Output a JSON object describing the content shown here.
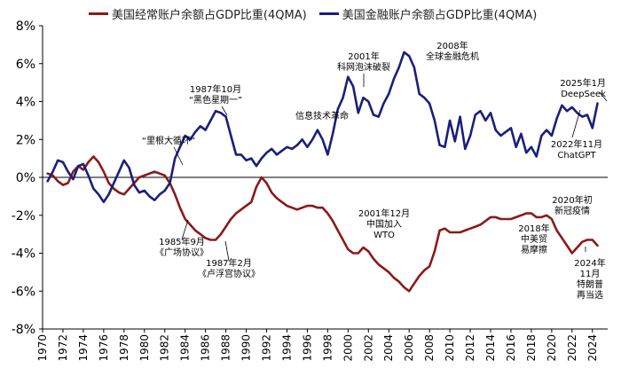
{
  "chart_data": {
    "type": "line",
    "title": "",
    "xlabel": "",
    "ylabel": "",
    "x_ticks": [
      "1970",
      "1972",
      "1974",
      "1976",
      "1978",
      "1980",
      "1982",
      "1984",
      "1986",
      "1988",
      "1990",
      "1992",
      "1994",
      "1996",
      "1998",
      "2000",
      "2002",
      "2004",
      "2006",
      "2008",
      "2010",
      "2012",
      "2014",
      "2016",
      "2018",
      "2020",
      "2022",
      "2024"
    ],
    "y_ticks": [
      "8%",
      "6%",
      "4%",
      "2%",
      "0%",
      "-2%",
      "-4%",
      "-6%",
      "-8%"
    ],
    "xlim": [
      1970,
      2025.5
    ],
    "ylim": [
      -8,
      8
    ],
    "legend_position": "top-left",
    "series": [
      {
        "name": "美国经常账户余额占GDP比重(4QMA)",
        "color": "#8B1A1A",
        "x": [
          1970.5,
          1971,
          1971.5,
          1972,
          1972.5,
          1973,
          1973.5,
          1974,
          1974.5,
          1975,
          1975.5,
          1976,
          1976.5,
          1977,
          1977.5,
          1978,
          1978.5,
          1979,
          1979.5,
          1980,
          1980.5,
          1981,
          1981.5,
          1982,
          1982.5,
          1983,
          1983.5,
          1984,
          1984.5,
          1985,
          1985.5,
          1986,
          1986.5,
          1987,
          1987.5,
          1988,
          1988.5,
          1989,
          1989.5,
          1990,
          1990.5,
          1991,
          1991.5,
          1992,
          1992.5,
          1993,
          1993.5,
          1994,
          1994.5,
          1995,
          1995.5,
          1996,
          1996.5,
          1997,
          1997.5,
          1998,
          1998.5,
          1999,
          1999.5,
          2000,
          2000.5,
          2001,
          2001.5,
          2002,
          2002.5,
          2003,
          2003.5,
          2004,
          2004.5,
          2005,
          2005.5,
          2006,
          2006.5,
          2007,
          2007.5,
          2008,
          2008.5,
          2009,
          2009.5,
          2010,
          2010.5,
          2011,
          2011.5,
          2012,
          2012.5,
          2013,
          2013.5,
          2014,
          2014.5,
          2015,
          2015.5,
          2016,
          2016.5,
          2017,
          2017.5,
          2018,
          2018.5,
          2019,
          2019.5,
          2020,
          2020.5,
          2021,
          2021.5,
          2022,
          2022.5,
          2023,
          2023.5,
          2024,
          2024.5
        ],
        "values": [
          0.2,
          0.1,
          -0.2,
          -0.4,
          -0.3,
          0.3,
          0.6,
          0.4,
          0.8,
          1.1,
          0.8,
          0.3,
          -0.3,
          -0.6,
          -0.8,
          -0.9,
          -0.6,
          -0.3,
          0.0,
          0.1,
          0.2,
          0.3,
          0.2,
          0.1,
          -0.3,
          -0.9,
          -1.6,
          -2.2,
          -2.5,
          -2.8,
          -3.0,
          -3.2,
          -3.3,
          -3.3,
          -3.0,
          -2.6,
          -2.2,
          -1.9,
          -1.7,
          -1.5,
          -1.3,
          -0.5,
          0.0,
          -0.3,
          -0.8,
          -1.1,
          -1.3,
          -1.5,
          -1.6,
          -1.7,
          -1.6,
          -1.5,
          -1.5,
          -1.6,
          -1.6,
          -1.9,
          -2.3,
          -2.8,
          -3.3,
          -3.8,
          -4.0,
          -4.0,
          -3.7,
          -3.9,
          -4.3,
          -4.6,
          -4.8,
          -5.0,
          -5.3,
          -5.5,
          -5.8,
          -6.0,
          -5.6,
          -5.2,
          -4.9,
          -4.7,
          -3.9,
          -2.8,
          -2.7,
          -2.9,
          -2.9,
          -2.9,
          -2.8,
          -2.7,
          -2.6,
          -2.5,
          -2.3,
          -2.1,
          -2.1,
          -2.2,
          -2.2,
          -2.2,
          -2.1,
          -2.0,
          -1.9,
          -1.9,
          -2.1,
          -2.1,
          -2.0,
          -2.2,
          -2.8,
          -3.2,
          -3.6,
          -4.0,
          -3.7,
          -3.4,
          -3.3,
          -3.3,
          -3.6
        ]
      },
      {
        "name": "美国金融账户余额占GDP比重(4QMA)",
        "color": "#1A1F7A",
        "x": [
          1970.5,
          1971,
          1971.5,
          1972,
          1972.5,
          1973,
          1973.5,
          1974,
          1974.5,
          1975,
          1975.5,
          1976,
          1976.5,
          1977,
          1977.5,
          1978,
          1978.5,
          1979,
          1979.5,
          1980,
          1980.5,
          1981,
          1981.5,
          1982,
          1982.5,
          1983,
          1983.5,
          1984,
          1984.5,
          1985,
          1985.5,
          1986,
          1986.5,
          1987,
          1987.5,
          1988,
          1988.5,
          1989,
          1989.5,
          1990,
          1990.5,
          1991,
          1991.5,
          1992,
          1992.5,
          1993,
          1993.5,
          1994,
          1994.5,
          1995,
          1995.5,
          1996,
          1996.5,
          1997,
          1997.5,
          1998,
          1998.5,
          1999,
          1999.5,
          2000,
          2000.5,
          2001,
          2001.5,
          2002,
          2002.5,
          2003,
          2003.5,
          2004,
          2004.5,
          2005,
          2005.5,
          2006,
          2006.5,
          2007,
          2007.5,
          2008,
          2008.5,
          2009,
          2009.5,
          2010,
          2010.5,
          2011,
          2011.5,
          2012,
          2012.5,
          2013,
          2013.5,
          2014,
          2014.5,
          2015,
          2015.5,
          2016,
          2016.5,
          2017,
          2017.5,
          2018,
          2018.5,
          2019,
          2019.5,
          2020,
          2020.5,
          2021,
          2021.5,
          2022,
          2022.5,
          2023,
          2023.5,
          2024,
          2024.5
        ],
        "values": [
          -0.2,
          0.3,
          0.9,
          0.8,
          0.3,
          -0.1,
          0.6,
          0.7,
          0.1,
          -0.6,
          -0.9,
          -1.3,
          -0.9,
          -0.3,
          0.3,
          0.9,
          0.5,
          -0.4,
          -0.8,
          -0.7,
          -1.0,
          -1.2,
          -0.9,
          -0.7,
          -0.3,
          1.0,
          1.6,
          2.2,
          2.0,
          2.4,
          2.7,
          2.5,
          3.0,
          3.5,
          3.4,
          3.2,
          2.2,
          1.2,
          1.2,
          0.9,
          1.0,
          0.6,
          1.0,
          1.3,
          1.5,
          1.2,
          1.4,
          1.6,
          1.5,
          1.7,
          2.0,
          1.6,
          2.0,
          2.5,
          2.0,
          1.2,
          2.3,
          3.6,
          4.2,
          5.3,
          4.8,
          3.4,
          4.2,
          4.0,
          3.3,
          3.2,
          3.9,
          4.4,
          5.2,
          5.8,
          6.6,
          6.4,
          5.8,
          4.4,
          4.2,
          3.9,
          3.0,
          1.7,
          1.6,
          3.0,
          1.9,
          3.2,
          1.5,
          2.2,
          3.3,
          3.5,
          3.0,
          3.4,
          2.5,
          2.2,
          2.4,
          2.6,
          1.6,
          2.3,
          1.3,
          1.6,
          1.1,
          2.2,
          2.5,
          2.2,
          3.1,
          3.8,
          3.5,
          3.7,
          3.4,
          3.2,
          3.3,
          2.6,
          3.9
        ]
      }
    ],
    "annotations": [
      {
        "id": "plaza",
        "lines": [
          "1985年9月",
          "《广场协议》"
        ]
      },
      {
        "id": "louvre",
        "lines": [
          "1987年2月",
          "《卢浮宫协议》"
        ]
      },
      {
        "id": "reagan",
        "lines": [
          "“里根大循环”"
        ]
      },
      {
        "id": "black-monday",
        "lines": [
          "1987年10月",
          "“黑色星期一”"
        ]
      },
      {
        "id": "it-revolution",
        "lines": [
          "信息技术革命"
        ]
      },
      {
        "id": "dotcom",
        "lines": [
          "2001年",
          "科网泡沫破裂"
        ]
      },
      {
        "id": "gfc",
        "lines": [
          "2008年",
          "全球金融危机"
        ]
      },
      {
        "id": "wto",
        "lines": [
          "2001年12月",
          "中国加入",
          "WTO"
        ]
      },
      {
        "id": "trade-war",
        "lines": [
          "2018年",
          "中美贸",
          "易摩擦"
        ]
      },
      {
        "id": "covid",
        "lines": [
          "2020年初",
          "新冠疫情"
        ]
      },
      {
        "id": "trump",
        "lines": [
          "2024年",
          "11月",
          "特朗普",
          "再当选"
        ]
      },
      {
        "id": "deepseek",
        "lines": [
          "2025年1月",
          "DeepSeek"
        ]
      },
      {
        "id": "chatgpt",
        "lines": [
          "2022年11月",
          "ChatGPT"
        ]
      }
    ]
  }
}
